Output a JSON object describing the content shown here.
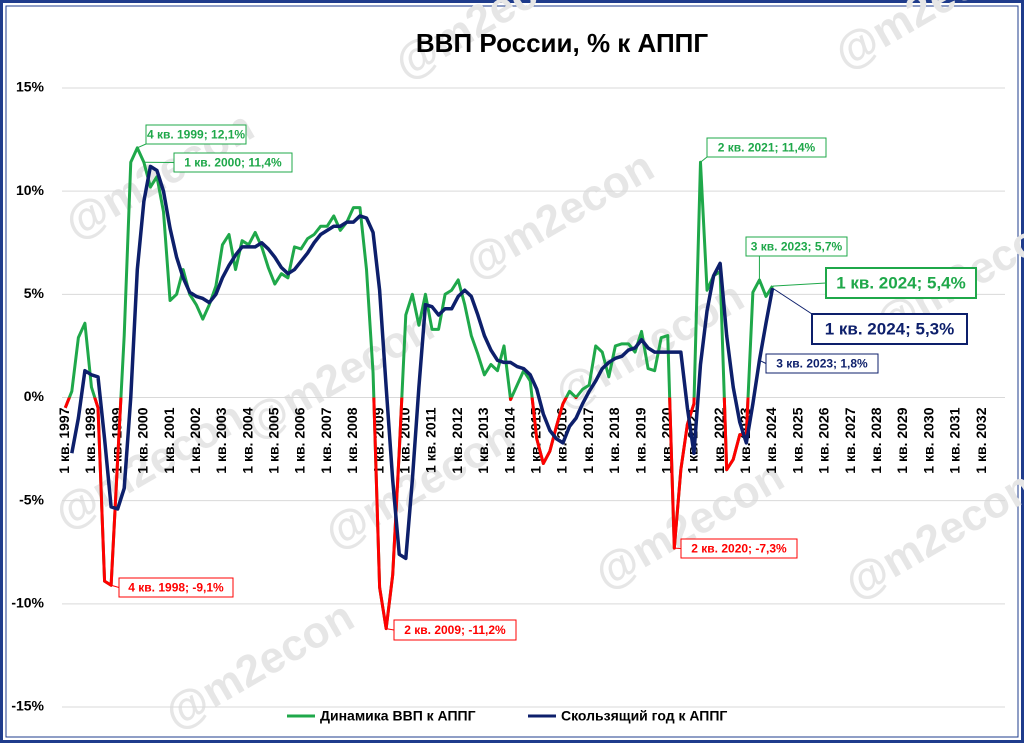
{
  "chart_data": {
    "type": "line",
    "title": "ВВП России, % к АППГ",
    "watermark": "@m2econ",
    "categories": [
      "1 кв. 1997",
      null,
      null,
      null,
      "1 кв. 1998",
      null,
      null,
      null,
      "1 кв. 1999",
      null,
      null,
      null,
      "1 кв. 2000",
      null,
      null,
      null,
      "1 кв. 2001",
      null,
      null,
      null,
      "1 кв. 2002",
      null,
      null,
      null,
      "1 кв. 2003",
      null,
      null,
      null,
      "1 кв. 2004",
      null,
      null,
      null,
      "1 кв. 2005",
      null,
      null,
      null,
      "1 кв. 2006",
      null,
      null,
      null,
      "1 кв. 2007",
      null,
      null,
      null,
      "1 кв. 2008",
      null,
      null,
      null,
      "1 кв. 2009",
      null,
      null,
      null,
      "1 кв. 2010",
      null,
      null,
      null,
      "1 кв. 2011",
      null,
      null,
      null,
      "1 кв. 2012",
      null,
      null,
      null,
      "1 кв. 2013",
      null,
      null,
      null,
      "1 кв. 2014",
      null,
      null,
      null,
      "1 кв. 2015",
      null,
      null,
      null,
      "1 кв. 2016",
      null,
      null,
      null,
      "1 кв. 2017",
      null,
      null,
      null,
      "1 кв. 2018",
      null,
      null,
      null,
      "1 кв. 2019",
      null,
      null,
      null,
      "1 кв. 2020",
      null,
      null,
      null,
      "1 кв. 2021",
      null,
      null,
      null,
      "1 кв. 2022",
      null,
      null,
      null,
      "1 кв. 2023",
      null,
      null,
      null,
      "1 кв. 2024",
      null,
      null,
      null,
      "1 кв. 2025",
      null,
      null,
      null,
      "1 кв. 2026",
      null,
      null,
      null,
      "1 кв. 2027",
      null,
      null,
      null,
      "1 кв. 2028",
      null,
      null,
      null,
      "1 кв. 2029",
      null,
      null,
      null,
      "1 кв. 2030",
      null,
      null,
      null,
      "1 кв. 2031",
      null,
      null,
      null,
      "1 кв. 2032",
      null,
      null,
      null
    ],
    "series": [
      {
        "name": "Динамика ВВП к АППГ",
        "color": "#1fa84a",
        "negative_color": "#ff0000",
        "values": [
          -0.5,
          0.3,
          2.9,
          3.6,
          0.5,
          -0.5,
          -8.9,
          -9.1,
          -3.0,
          3.0,
          11.4,
          12.1,
          11.4,
          10.2,
          10.7,
          9.0,
          4.7,
          5.0,
          6.2,
          5.0,
          4.5,
          3.8,
          4.5,
          5.4,
          7.4,
          7.9,
          6.2,
          7.6,
          7.4,
          8.0,
          7.3,
          6.3,
          5.5,
          6.0,
          5.8,
          7.3,
          7.2,
          7.7,
          7.9,
          8.3,
          8.3,
          8.8,
          8.1,
          8.5,
          9.2,
          9.2,
          6.2,
          1.2,
          -9.2,
          -11.2,
          -8.6,
          -2.6,
          4.0,
          5.0,
          3.5,
          5.0,
          3.3,
          3.3,
          5.0,
          5.2,
          5.7,
          4.5,
          3.0,
          2.1,
          1.1,
          1.6,
          1.3,
          2.5,
          -0.1,
          0.6,
          1.3,
          0.8,
          -2.0,
          -3.2,
          -2.6,
          -1.4,
          -0.3,
          0.3,
          0.0,
          0.4,
          0.6,
          2.5,
          2.2,
          1.0,
          2.5,
          2.6,
          2.6,
          2.2,
          3.2,
          1.4,
          1.3,
          2.9,
          3.0,
          -7.3,
          -3.5,
          -1.3,
          -0.3,
          11.4,
          5.2,
          5.9,
          6.1,
          -3.5,
          -3.0,
          -1.8,
          -1.8,
          5.1,
          5.7,
          4.9,
          5.4,
          null,
          null,
          null,
          null,
          null,
          null,
          null,
          null,
          null,
          null,
          null,
          null,
          null,
          null,
          null,
          null,
          null,
          null,
          null,
          null,
          null,
          null,
          null,
          null,
          null,
          null,
          null,
          null,
          null,
          null,
          null,
          null,
          null,
          null,
          null
        ]
      },
      {
        "name": "Скользящий год к АППГ",
        "color": "#0d1f6b",
        "values": [
          null,
          -2.7,
          -1.0,
          1.3,
          1.1,
          1.0,
          -2.0,
          -5.3,
          -5.4,
          -4.4,
          0.0,
          6.2,
          9.5,
          11.2,
          11.0,
          10.0,
          8.2,
          6.8,
          5.8,
          5.1,
          4.9,
          4.8,
          4.6,
          5.0,
          5.8,
          6.4,
          6.9,
          7.3,
          7.3,
          7.3,
          7.5,
          7.2,
          6.8,
          6.3,
          6.0,
          6.2,
          6.6,
          7.0,
          7.5,
          7.9,
          8.1,
          8.3,
          8.3,
          8.5,
          8.5,
          8.8,
          8.7,
          8.0,
          5.2,
          0.5,
          -4.0,
          -7.6,
          -7.8,
          -4.0,
          0.5,
          4.5,
          4.4,
          4.0,
          4.3,
          4.3,
          4.9,
          5.2,
          4.9,
          4.0,
          3.0,
          2.3,
          1.8,
          1.7,
          1.7,
          1.5,
          1.4,
          1.1,
          0.4,
          -0.8,
          -1.6,
          -2.0,
          -2.2,
          -1.4,
          -1.0,
          -0.3,
          0.3,
          0.8,
          1.4,
          1.7,
          1.9,
          2.0,
          2.3,
          2.4,
          2.8,
          2.4,
          2.2,
          2.2,
          2.2,
          2.2,
          2.2,
          -0.5,
          -2.7,
          1.6,
          4.2,
          5.9,
          6.5,
          3.0,
          0.5,
          -1.2,
          -2.2,
          -0.3,
          1.8,
          3.6,
          5.3,
          null,
          null,
          null,
          null,
          null,
          null,
          null,
          null,
          null,
          null,
          null,
          null,
          null,
          null,
          null,
          null,
          null,
          null,
          null,
          null,
          null,
          null,
          null,
          null,
          null,
          null,
          null,
          null,
          null,
          null,
          null,
          null,
          null,
          null,
          null
        ]
      }
    ],
    "ylim": [
      -15,
      15
    ],
    "yticks": [
      {
        "value": -15,
        "label": "-15%"
      },
      {
        "value": -10,
        "label": "-10%"
      },
      {
        "value": -5,
        "label": "-5%"
      },
      {
        "value": 0,
        "label": "0%"
      },
      {
        "value": 5,
        "label": "5%"
      },
      {
        "value": 10,
        "label": "10%"
      },
      {
        "value": 15,
        "label": "15%"
      }
    ],
    "grid": true,
    "legend": "bottom",
    "annotations": [
      "4 кв. 1999; 12,1%",
      "1 кв. 2000; 11,4%",
      "4 кв. 1998; -9,1%",
      "2 кв. 2009; -11,2%",
      "2 кв. 2020; -7,3%",
      "2 кв. 2021; 11,4%",
      "3 кв. 2023; 5,7%",
      "1 кв. 2024; 5,4%",
      "1 кв. 2024; 5,3%",
      "3 кв. 2023; 1,8%"
    ]
  }
}
